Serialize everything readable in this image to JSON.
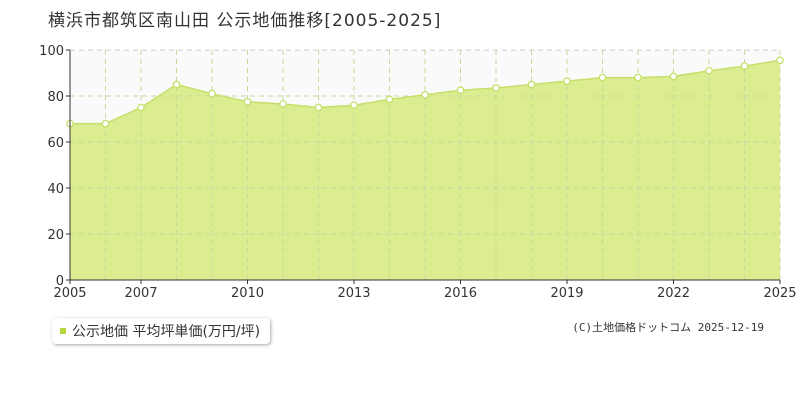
{
  "chart_data": {
    "type": "area",
    "title": "横浜市都筑区南山田 公示地価推移[2005-2025]",
    "x": [
      2005,
      2006,
      2007,
      2008,
      2009,
      2010,
      2011,
      2012,
      2013,
      2014,
      2015,
      2016,
      2017,
      2018,
      2019,
      2020,
      2021,
      2022,
      2023,
      2024,
      2025
    ],
    "x_tick_labels": [
      "2005",
      "2007",
      "2010",
      "2013",
      "2016",
      "2019",
      "2022",
      "2025"
    ],
    "series": [
      {
        "name": "公示地価 平均坪単価(万円/坪)",
        "values": [
          68,
          68,
          75,
          85,
          81,
          77.5,
          76.5,
          75,
          76,
          78.5,
          80.5,
          82.5,
          83.5,
          85,
          86.5,
          88,
          88,
          88.5,
          91,
          93,
          95.5
        ]
      }
    ],
    "xlim": [
      2005,
      2025
    ],
    "ylim": [
      0,
      100
    ],
    "y_ticks": [
      0,
      20,
      40,
      60,
      80,
      100
    ],
    "grid": true,
    "legend_position": "bottom-left",
    "colors": {
      "fill": "#dcec91",
      "line": "#c4e06a",
      "marker_stroke": "#c4e06a",
      "marker_fill": "#ffffff",
      "legend_swatch": "#b6d83a",
      "grid": "#cccccc",
      "plot_bg": "#fafafa"
    }
  },
  "credit": "(C)土地価格ドットコム 2025-12-19"
}
